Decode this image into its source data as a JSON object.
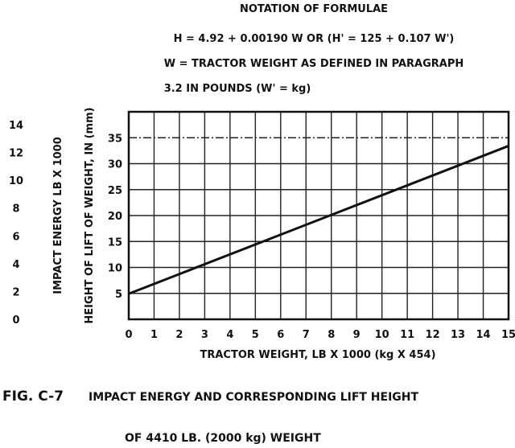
{
  "notation": {
    "title": "NOTATION OF FORMULAE",
    "line1": "H = 4.92 + 0.00190 W OR (H' = 125 + 0.107 W')",
    "line2": "W = TRACTOR WEIGHT AS  DEFINED  IN PARAGRAPH",
    "line3": "3.2 IN POUNDS    (W' = kg)"
  },
  "caption": {
    "line1_label": "FIG. C-7",
    "line1_text": "IMPACT ENERGY AND CORRESPONDING LIFT HEIGHT",
    "line2": "OF 4410 LB. (2000 kg) WEIGHT"
  },
  "chart_data": {
    "type": "line",
    "xlabel": "TRACTOR WEIGHT, LB X 1000  (kg X 454)",
    "ylabel": "HEIGHT OF LIFT OF WEIGHT, IN (mm)",
    "y2label": "IMPACT ENERGY LB X 1000",
    "xlim": [
      0,
      15
    ],
    "ylim": [
      0,
      40
    ],
    "xticks": [
      "0",
      "1",
      "2",
      "3",
      "4",
      "5",
      "6",
      "7",
      "8",
      "9",
      "10",
      "11",
      "12",
      "13",
      "14",
      "15"
    ],
    "yticks": [
      "5",
      "10",
      "15",
      "20",
      "25",
      "30",
      "35"
    ],
    "y2ticks": [
      "0",
      "2",
      "4",
      "6",
      "8",
      "10",
      "12",
      "14"
    ],
    "grid": true,
    "series": [
      {
        "x": [
          0,
          15
        ],
        "y": [
          4.92,
          33.42
        ]
      }
    ],
    "line_color": "#111111"
  }
}
